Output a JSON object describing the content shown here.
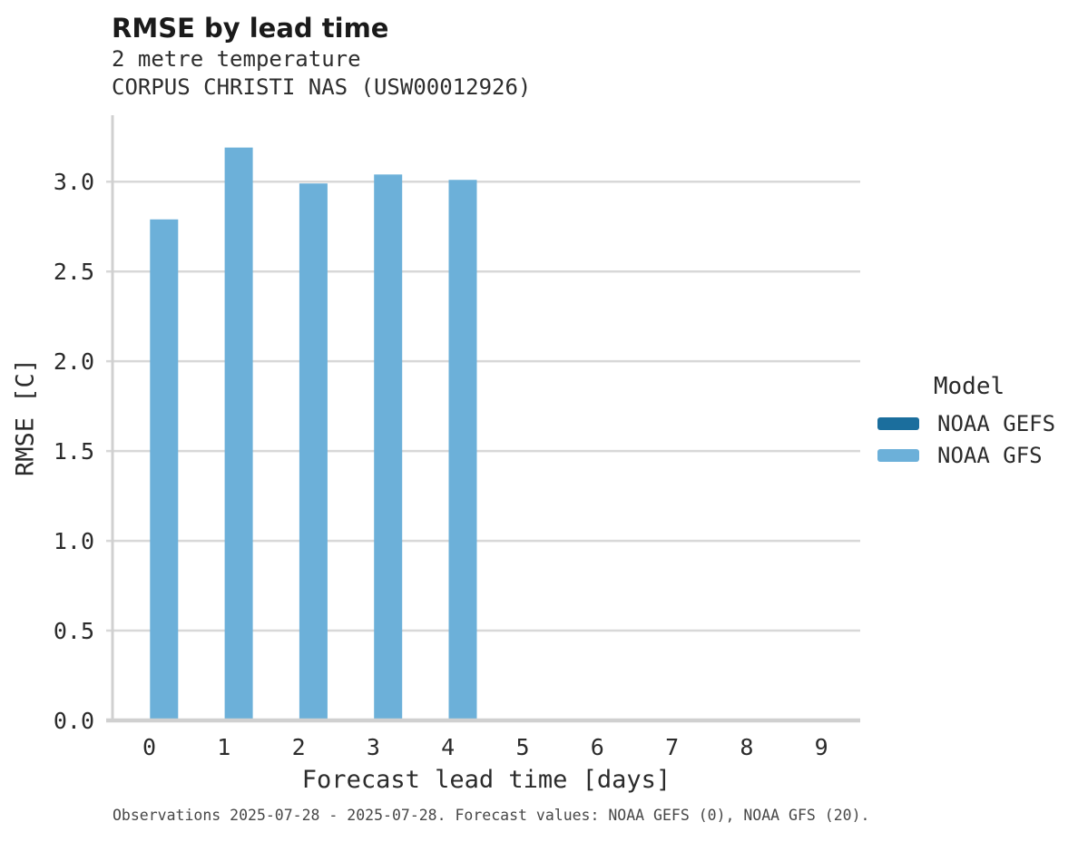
{
  "chart_data": {
    "type": "bar",
    "title": "RMSE by lead time",
    "subtitle": [
      "2 metre temperature",
      "CORPUS CHRISTI NAS (USW00012926)"
    ],
    "xlabel": "Forecast lead time [days]",
    "ylabel": "RMSE [C]",
    "categories": [
      "0",
      "1",
      "2",
      "3",
      "4",
      "5",
      "6",
      "7",
      "8",
      "9"
    ],
    "series": [
      {
        "name": "NOAA GEFS",
        "color": "#1B6E9D",
        "values": []
      },
      {
        "name": "NOAA GFS",
        "color": "#6CB0D9",
        "values": [
          2.79,
          3.19,
          2.99,
          3.04,
          3.01
        ]
      }
    ],
    "ylim": [
      0,
      3.37
    ],
    "yticks": [
      0.0,
      0.5,
      1.0,
      1.5,
      2.0,
      2.5,
      3.0
    ],
    "ytick_labels": [
      "0.0",
      "0.5",
      "1.0",
      "1.5",
      "2.0",
      "2.5",
      "3.0"
    ],
    "grid": "horizontal",
    "legend_position": "right",
    "legend_title": "Model",
    "colors": {
      "grid": "#D8D8D8",
      "spine": "#D0D0D0",
      "tick_text": "#2B2B2B"
    }
  },
  "footer": {
    "caption": "Observations 2025-07-28 - 2025-07-28. Forecast values: NOAA GEFS (0), NOAA GFS (20)."
  }
}
